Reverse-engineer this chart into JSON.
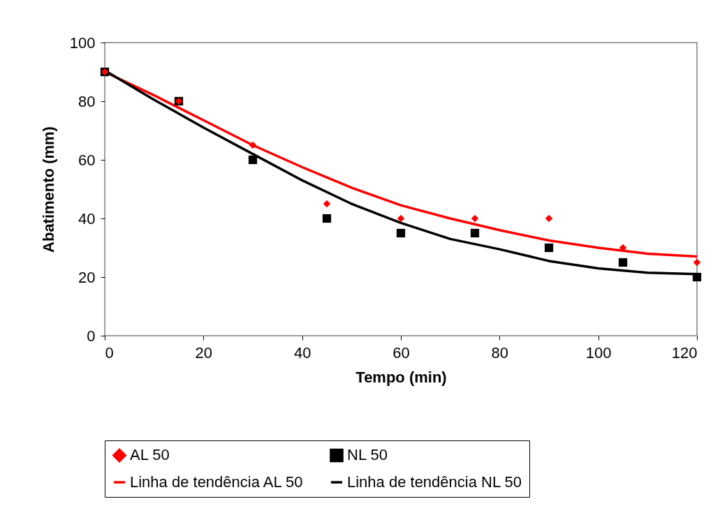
{
  "chart_data": {
    "type": "scatter",
    "xlabel": "Tempo (min)",
    "ylabel": "Abatimento (mm)",
    "xlim": [
      0,
      120
    ],
    "xticks": [
      0,
      20,
      40,
      60,
      80,
      100,
      120
    ],
    "ylim": [
      0,
      100
    ],
    "yticks": [
      0,
      20,
      40,
      60,
      80,
      100
    ],
    "grid": false,
    "legend": "bottom",
    "x": [
      0,
      15,
      30,
      45,
      60,
      75,
      90,
      105,
      120
    ],
    "series": [
      {
        "name": "AL 50",
        "marker": "diamond",
        "color": "#ff0000",
        "values": [
          90,
          80,
          65,
          45,
          40,
          40,
          40,
          30,
          25
        ]
      },
      {
        "name": "NL 50",
        "marker": "square",
        "color": "#000000",
        "values": [
          90,
          80,
          60,
          40,
          35,
          35,
          30,
          25,
          20
        ]
      },
      {
        "name": "Linha de tendência AL 50",
        "type": "line",
        "marker": "none",
        "line_style": "solid",
        "color": "#ff0000",
        "x": [
          0,
          10,
          20,
          30,
          40,
          50,
          60,
          70,
          80,
          90,
          100,
          110,
          120
        ],
        "values": [
          90,
          82,
          73.5,
          65,
          57.5,
          50.5,
          44.5,
          40,
          36,
          32.5,
          30,
          28,
          27
        ]
      },
      {
        "name": "Linha de tendência NL 50",
        "type": "line",
        "marker": "none",
        "line_style": "solid",
        "color": "#000000",
        "x": [
          0,
          10,
          20,
          30,
          40,
          50,
          60,
          70,
          80,
          90,
          100,
          110,
          120
        ],
        "values": [
          90.5,
          80.5,
          71,
          62,
          53,
          45,
          38.5,
          33,
          29.5,
          25.5,
          23,
          21.5,
          21
        ]
      }
    ]
  }
}
